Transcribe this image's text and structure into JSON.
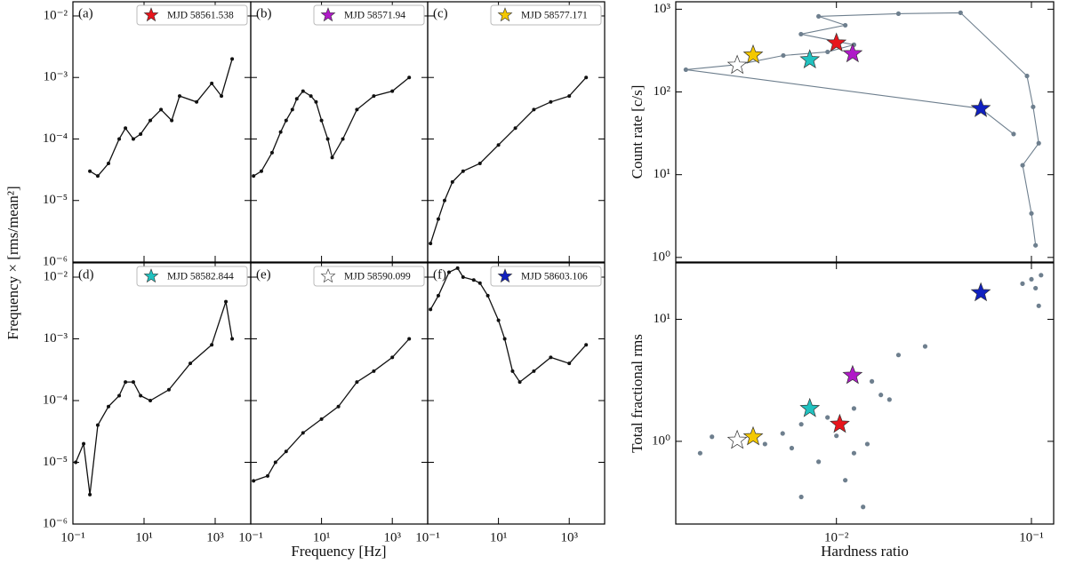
{
  "chart_data": [
    {
      "type": "line",
      "title": "(a)",
      "ylabel": "Frequency × [rms/mean²]",
      "xlog": true,
      "ylog": true,
      "xlim": [
        0.1,
        10000
      ],
      "ylim": [
        1e-06,
        0.017
      ],
      "xticks": [
        {
          "value": 0.1,
          "label": "10⁻¹"
        },
        {
          "value": 10,
          "label": "10¹"
        },
        {
          "value": 1000,
          "label": "10³"
        }
      ],
      "yticks": [
        {
          "value": 1e-06,
          "label": "10⁻⁶"
        },
        {
          "value": 1e-05,
          "label": "10⁻⁵"
        },
        {
          "value": 0.0001,
          "label": "10⁻⁴"
        },
        {
          "value": 0.001,
          "label": "10⁻³"
        },
        {
          "value": 0.01,
          "label": "10⁻²"
        }
      ],
      "series": [
        {
          "name": "MJD 58561.538",
          "color": "#e8151c",
          "x": [
            0.3,
            0.5,
            1,
            2,
            3,
            5,
            8,
            15,
            30,
            60,
            100,
            300,
            800,
            1500,
            3000
          ],
          "values": [
            3e-05,
            2.5e-05,
            4e-05,
            0.0001,
            0.00015,
            0.0001,
            0.00012,
            0.0002,
            0.0003,
            0.0002,
            0.0005,
            0.0004,
            0.0008,
            0.0005,
            0.002
          ]
        }
      ]
    },
    {
      "type": "line",
      "title": "(b)",
      "xlog": true,
      "ylog": true,
      "xlim": [
        0.1,
        10000
      ],
      "ylim": [
        1e-06,
        0.017
      ],
      "xticks": [
        {
          "value": 0.1,
          "label": "10⁻¹"
        },
        {
          "value": 10,
          "label": "10¹"
        },
        {
          "value": 1000,
          "label": "10³"
        }
      ],
      "yticks": [
        {
          "value": 1e-06,
          "label": "10⁻⁶"
        },
        {
          "value": 1e-05,
          "label": "10⁻⁵"
        },
        {
          "value": 0.0001,
          "label": "10⁻⁴"
        },
        {
          "value": 0.001,
          "label": "10⁻³"
        },
        {
          "value": 0.01,
          "label": "10⁻²"
        }
      ],
      "series": [
        {
          "name": "MJD 58571.94",
          "color": "#b019c8",
          "x": [
            0.12,
            0.2,
            0.4,
            0.7,
            1,
            1.5,
            2,
            3,
            5,
            7,
            10,
            15,
            20,
            40,
            100,
            300,
            1000,
            3000
          ],
          "values": [
            2.5e-05,
            3e-05,
            6e-05,
            0.00013,
            0.0002,
            0.0003,
            0.00045,
            0.0006,
            0.0005,
            0.0004,
            0.0002,
            0.0001,
            5e-05,
            0.0001,
            0.0003,
            0.0005,
            0.0006,
            0.001
          ]
        }
      ]
    },
    {
      "type": "line",
      "title": "(c)",
      "xlog": true,
      "ylog": true,
      "xlim": [
        0.1,
        10000
      ],
      "ylim": [
        1e-06,
        0.017
      ],
      "xticks": [
        {
          "value": 0.1,
          "label": "10⁻¹"
        },
        {
          "value": 10,
          "label": "10¹"
        },
        {
          "value": 1000,
          "label": "10³"
        }
      ],
      "yticks": [
        {
          "value": 1e-06,
          "label": "10⁻⁶"
        },
        {
          "value": 1e-05,
          "label": "10⁻⁵"
        },
        {
          "value": 0.0001,
          "label": "10⁻⁴"
        },
        {
          "value": 0.001,
          "label": "10⁻³"
        },
        {
          "value": 0.01,
          "label": "10⁻²"
        }
      ],
      "series": [
        {
          "name": "MJD 58577.171",
          "color": "#f4c800",
          "x": [
            0.12,
            0.2,
            0.3,
            0.5,
            1,
            3,
            10,
            30,
            100,
            300,
            1000,
            3000
          ],
          "values": [
            2e-06,
            5e-06,
            1e-05,
            2e-05,
            3e-05,
            4e-05,
            8e-05,
            0.00015,
            0.0003,
            0.0004,
            0.0005,
            0.001
          ]
        }
      ]
    },
    {
      "type": "line",
      "title": "(d)",
      "xlog": true,
      "ylog": true,
      "xlim": [
        0.1,
        10000
      ],
      "ylim": [
        1e-06,
        0.017
      ],
      "xticks": [
        {
          "value": 0.1,
          "label": "10⁻¹"
        },
        {
          "value": 10,
          "label": "10¹"
        },
        {
          "value": 1000,
          "label": "10³"
        }
      ],
      "yticks": [
        {
          "value": 1e-06,
          "label": "10⁻⁶"
        },
        {
          "value": 1e-05,
          "label": "10⁻⁵"
        },
        {
          "value": 0.0001,
          "label": "10⁻⁴"
        },
        {
          "value": 0.001,
          "label": "10⁻³"
        },
        {
          "value": 0.01,
          "label": "10⁻²"
        }
      ],
      "series": [
        {
          "name": "MJD 58582.844",
          "color": "#20c2c0",
          "x": [
            0.12,
            0.2,
            0.3,
            0.5,
            1,
            2,
            3,
            5,
            8,
            15,
            50,
            200,
            800,
            2000,
            3000
          ],
          "values": [
            1e-05,
            2e-05,
            3e-06,
            4e-05,
            8e-05,
            0.00012,
            0.0002,
            0.0002,
            0.00012,
            0.0001,
            0.00015,
            0.0004,
            0.0008,
            0.004,
            0.001
          ]
        }
      ]
    },
    {
      "type": "line",
      "title": "(e)",
      "xlabel": "Frequency [Hz]",
      "xlog": true,
      "ylog": true,
      "xlim": [
        0.1,
        10000
      ],
      "ylim": [
        1e-06,
        0.017
      ],
      "xticks": [
        {
          "value": 0.1,
          "label": "10⁻¹"
        },
        {
          "value": 10,
          "label": "10¹"
        },
        {
          "value": 1000,
          "label": "10³"
        }
      ],
      "yticks": [
        {
          "value": 1e-06,
          "label": "10⁻⁶"
        },
        {
          "value": 1e-05,
          "label": "10⁻⁵"
        },
        {
          "value": 0.0001,
          "label": "10⁻⁴"
        },
        {
          "value": 0.001,
          "label": "10⁻³"
        },
        {
          "value": 0.01,
          "label": "10⁻²"
        }
      ],
      "series": [
        {
          "name": "MJD 58590.099",
          "color": "#ffffff",
          "x": [
            0.12,
            0.3,
            0.5,
            1,
            3,
            10,
            30,
            100,
            300,
            1000,
            3000
          ],
          "values": [
            5e-06,
            6e-06,
            1e-05,
            1.5e-05,
            3e-05,
            5e-05,
            8e-05,
            0.0002,
            0.0003,
            0.0005,
            0.001
          ]
        }
      ]
    },
    {
      "type": "line",
      "title": "(f)",
      "xlog": true,
      "ylog": true,
      "xlim": [
        0.1,
        10000
      ],
      "ylim": [
        1e-06,
        0.017
      ],
      "xticks": [
        {
          "value": 0.1,
          "label": "10⁻¹"
        },
        {
          "value": 10,
          "label": "10¹"
        },
        {
          "value": 1000,
          "label": "10³"
        }
      ],
      "yticks": [
        {
          "value": 1e-06,
          "label": "10⁻⁶"
        },
        {
          "value": 1e-05,
          "label": "10⁻⁵"
        },
        {
          "value": 0.0001,
          "label": "10⁻⁴"
        },
        {
          "value": 0.001,
          "label": "10⁻³"
        },
        {
          "value": 0.01,
          "label": "10⁻²"
        }
      ],
      "series": [
        {
          "name": "MJD 58603.106",
          "color": "#1020c0",
          "x": [
            0.12,
            0.2,
            0.4,
            0.7,
            1,
            2,
            3,
            5,
            10,
            15,
            25,
            40,
            100,
            300,
            1000,
            3000
          ],
          "values": [
            0.003,
            0.005,
            0.012,
            0.014,
            0.01,
            0.009,
            0.008,
            0.005,
            0.002,
            0.001,
            0.0003,
            0.0002,
            0.0003,
            0.0005,
            0.0004,
            0.0008
          ]
        }
      ]
    },
    {
      "type": "scatter",
      "ylabel": "Count rate [c/s]",
      "xlog": true,
      "ylog": true,
      "line": true,
      "color": "#6e7f8e",
      "xlim": [
        0.0015,
        0.13
      ],
      "ylim": [
        0.88,
        1230
      ],
      "xticks": [
        {
          "value": 0.01,
          "label": "10⁻²"
        },
        {
          "value": 0.1,
          "label": "10⁻¹"
        }
      ],
      "yticks": [
        {
          "value": 1,
          "label": "10⁰"
        },
        {
          "value": 10,
          "label": "10¹"
        },
        {
          "value": 100,
          "label": "10²"
        },
        {
          "value": 1000,
          "label": "10³"
        }
      ],
      "x": [
        0.105,
        0.1,
        0.0901,
        0.109,
        0.102,
        0.0949,
        0.0433,
        0.0208,
        0.0081,
        0.0111,
        0.00658,
        0.0123,
        0.00901,
        0.00534,
        0.00316,
        0.00169,
        0.055,
        0.081
      ],
      "values": [
        1.4,
        3.4,
        13,
        24,
        66,
        156,
        906,
        883,
        820,
        640,
        500,
        372,
        305,
        276,
        215,
        186,
        63,
        31
      ],
      "stars": {
        "colors": [
          "#e8151c",
          "#b019c8",
          "#f4c800",
          "#20c2c0",
          "#ffffff",
          "#1020c0"
        ],
        "x": [
          0.01,
          0.0121,
          0.00374,
          0.0073,
          0.0031,
          0.055
        ],
        "values": [
          390,
          290,
          280,
          245,
          210,
          63
        ]
      }
    },
    {
      "type": "scatter",
      "xlabel": "Hardness ratio",
      "ylabel": "Total fractional rms",
      "xlog": true,
      "ylog": true,
      "line": false,
      "color": "#6e7f8e",
      "xlim": [
        0.0015,
        0.13
      ],
      "ylim": [
        0.21,
        29
      ],
      "xticks": [
        {
          "value": 0.01,
          "label": "10⁻²"
        },
        {
          "value": 0.1,
          "label": "10⁻¹"
        }
      ],
      "yticks": [
        {
          "value": 1,
          "label": "10⁰"
        },
        {
          "value": 10,
          "label": "10¹"
        }
      ],
      "x": [
        0.1,
        0.105,
        0.112,
        0.09,
        0.109,
        0.0208,
        0.0285,
        0.0152,
        0.0169,
        0.0123,
        0.009,
        0.0066,
        0.0053,
        0.0043,
        0.0023,
        0.002,
        0.0081,
        0.0111,
        0.0066,
        0.0137,
        0.0187,
        0.0144,
        0.01,
        0.0123,
        0.0059
      ],
      "values": [
        21.3,
        18,
        23,
        19.6,
        12.9,
        5.1,
        6.0,
        3.1,
        2.4,
        1.86,
        1.57,
        1.38,
        1.16,
        0.95,
        1.09,
        0.8,
        0.68,
        0.48,
        0.35,
        0.29,
        2.2,
        0.95,
        1.11,
        0.8,
        0.88
      ],
      "stars": {
        "colors": [
          "#e8151c",
          "#b019c8",
          "#f4c800",
          "#20c2c0",
          "#ffffff",
          "#1020c0"
        ],
        "x": [
          0.0104,
          0.0121,
          0.00374,
          0.0073,
          0.0031,
          0.055
        ],
        "values": [
          1.38,
          3.47,
          1.09,
          1.86,
          1.02,
          16.5
        ]
      }
    }
  ]
}
